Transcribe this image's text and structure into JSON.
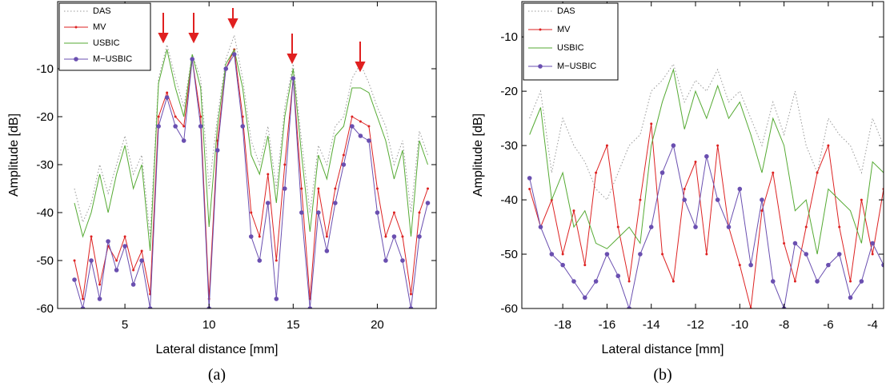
{
  "chart_data": [
    {
      "type": "line",
      "caption": "(a)",
      "xlabel": "Lateral distance [mm]",
      "ylabel": "Amplitude [dB]",
      "xlim": [
        1,
        23.5
      ],
      "ylim": [
        -60,
        4
      ],
      "xticks": [
        5,
        10,
        15,
        20
      ],
      "yticks": [
        -60,
        -50,
        -40,
        -30,
        -20,
        -10
      ],
      "legend": "upper left",
      "x": [
        2,
        2.5,
        3,
        3.5,
        4,
        4.5,
        5,
        5.5,
        6,
        6.5,
        7,
        7.5,
        8,
        8.5,
        9,
        9.5,
        10,
        10.5,
        11,
        11.5,
        12,
        12.5,
        13,
        13.5,
        14,
        14.5,
        15,
        15.5,
        16,
        16.5,
        17,
        17.5,
        18,
        18.5,
        19,
        19.5,
        20,
        20.5,
        21,
        21.5,
        22,
        22.5,
        23
      ],
      "series": [
        {
          "name": "DAS",
          "color": "#999999",
          "values": [
            -35,
            -42,
            -38,
            -30,
            -36,
            -30,
            -24,
            -32,
            -28,
            -45,
            -12,
            -5,
            -12,
            -18,
            -7,
            -12,
            -35,
            -20,
            -8,
            -3,
            -12,
            -25,
            -30,
            -22,
            -35,
            -18,
            -9,
            -25,
            -40,
            -26,
            -30,
            -22,
            -20,
            -12,
            -9,
            -13,
            -18,
            -22,
            -30,
            -25,
            -40,
            -23,
            -28
          ]
        },
        {
          "name": "MV",
          "color": "#dd2222",
          "values": [
            -50,
            -58,
            -45,
            -55,
            -47,
            -50,
            -45,
            -52,
            -48,
            -57,
            -20,
            -15,
            -20,
            -22,
            -8,
            -20,
            -58,
            -25,
            -10,
            -6,
            -20,
            -40,
            -45,
            -32,
            -50,
            -30,
            -12,
            -35,
            -58,
            -35,
            -45,
            -35,
            -28,
            -20,
            -21,
            -22,
            -35,
            -45,
            -40,
            -45,
            -57,
            -40,
            -35
          ]
        },
        {
          "name": "USBIC",
          "color": "#55aa33",
          "values": [
            -38,
            -45,
            -40,
            -32,
            -40,
            -32,
            -26,
            -35,
            -30,
            -48,
            -13,
            -6,
            -14,
            -20,
            -7,
            -14,
            -43,
            -22,
            -9,
            -6,
            -14,
            -28,
            -32,
            -24,
            -38,
            -20,
            -10,
            -28,
            -44,
            -28,
            -33,
            -24,
            -22,
            -14,
            -14,
            -15,
            -20,
            -25,
            -33,
            -27,
            -45,
            -25,
            -30
          ]
        },
        {
          "name": "M−USBIC",
          "color": "#6a4fb0",
          "values": [
            -54,
            -60,
            -50,
            -58,
            -46,
            -52,
            -47,
            -55,
            -50,
            -60,
            -22,
            -16,
            -22,
            -25,
            -8,
            -22,
            -60,
            -27,
            -10,
            -7,
            -22,
            -45,
            -50,
            -38,
            -58,
            -35,
            -12,
            -40,
            -60,
            -40,
            -48,
            -38,
            -30,
            -22,
            -24,
            -25,
            -40,
            -50,
            -45,
            -50,
            -60,
            -45,
            -38
          ]
        }
      ]
    },
    {
      "type": "line",
      "caption": "(b)",
      "xlabel": "Lateral distance [mm]",
      "ylabel": "Amplitude [dB]",
      "xlim": [
        -19.85,
        -3.5
      ],
      "ylim": [
        -60,
        -3.5
      ],
      "xticks": [
        -18,
        -16,
        -14,
        -12,
        -10,
        -8,
        -6,
        -4
      ],
      "yticks": [
        -60,
        -50,
        -40,
        -30,
        -20,
        -10
      ],
      "legend": "upper left",
      "x": [
        -19.5,
        -19,
        -18.5,
        -18,
        -17.5,
        -17,
        -16.5,
        -16,
        -15.5,
        -15,
        -14.5,
        -14,
        -13.5,
        -13,
        -12.5,
        -12,
        -11.5,
        -11,
        -10.5,
        -10,
        -9.5,
        -9,
        -8.5,
        -8,
        -7.5,
        -7,
        -6.5,
        -6,
        -5.5,
        -5,
        -4.5,
        -4,
        -3.5
      ],
      "series": [
        {
          "name": "DAS",
          "color": "#999999",
          "values": [
            -25,
            -20,
            -35,
            -25,
            -30,
            -33,
            -38,
            -40,
            -35,
            -30,
            -28,
            -20,
            -18,
            -15,
            -22,
            -18,
            -20,
            -16,
            -22,
            -20,
            -25,
            -30,
            -22,
            -28,
            -20,
            -30,
            -35,
            -25,
            -28,
            -30,
            -35,
            -25,
            -30
          ]
        },
        {
          "name": "MV",
          "color": "#dd2222",
          "values": [
            -38,
            -45,
            -40,
            -50,
            -42,
            -52,
            -35,
            -30,
            -45,
            -55,
            -40,
            -26,
            -50,
            -55,
            -38,
            -33,
            -50,
            -30,
            -45,
            -52,
            -60,
            -42,
            -35,
            -48,
            -55,
            -45,
            -35,
            -30,
            -45,
            -55,
            -40,
            -50,
            -38
          ]
        },
        {
          "name": "USBIC",
          "color": "#55aa33",
          "values": [
            -28,
            -23,
            -40,
            -35,
            -45,
            -42,
            -48,
            -49,
            -47,
            -45,
            -48,
            -30,
            -22,
            -16,
            -27,
            -20,
            -25,
            -19,
            -25,
            -22,
            -28,
            -35,
            -25,
            -30,
            -42,
            -40,
            -50,
            -38,
            -40,
            -42,
            -48,
            -33,
            -35
          ]
        },
        {
          "name": "M−USBIC",
          "color": "#6a4fb0",
          "values": [
            -36,
            -45,
            -50,
            -52,
            -55,
            -58,
            -55,
            -50,
            -54,
            -60,
            -50,
            -45,
            -35,
            -30,
            -40,
            -45,
            -32,
            -40,
            -45,
            -38,
            -52,
            -40,
            -55,
            -60,
            -48,
            -50,
            -55,
            -52,
            -50,
            -58,
            -55,
            -48,
            -52
          ]
        }
      ]
    }
  ]
}
